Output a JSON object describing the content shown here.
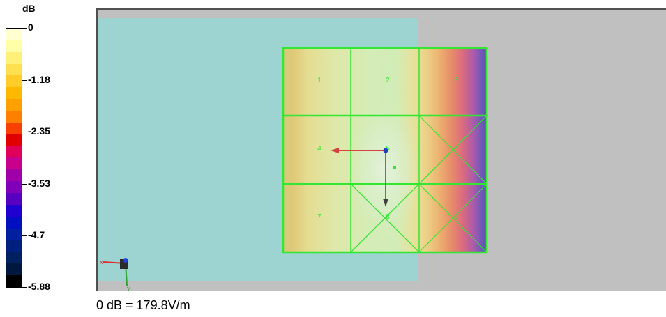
{
  "color_scale": {
    "unit_label": "dB",
    "tick_labels": [
      "0",
      "-1.18",
      "-2.35",
      "-3.53",
      "-4.7",
      "-5.88"
    ],
    "colors": [
      "#ffffd0",
      "#ffffa8",
      "#fff07a",
      "#ffe050",
      "#ffcc28",
      "#ffb800",
      "#ffa000",
      "#ff8000",
      "#f84000",
      "#e00000",
      "#e0005a",
      "#c8008c",
      "#a000a8",
      "#8000b8",
      "#5800c0",
      "#2000d0",
      "#0010c0",
      "#0020a0",
      "#002080",
      "#002060",
      "#001840",
      "#000000"
    ]
  },
  "cell_labels": [
    "1",
    "2",
    "3",
    "4",
    "5",
    "6",
    "7",
    "8",
    "9"
  ],
  "footer_text": "0 dB = 179.8V/m",
  "axis_labels": {
    "x": "x",
    "y": "y"
  },
  "colors": {
    "viewport_bg": "#c0c0c0",
    "phantom": "#9dd3d1",
    "grid": "#32e632",
    "arrow_red": "#d84040",
    "arrow_green": "#30a030",
    "probe_point": "#2040c0"
  }
}
